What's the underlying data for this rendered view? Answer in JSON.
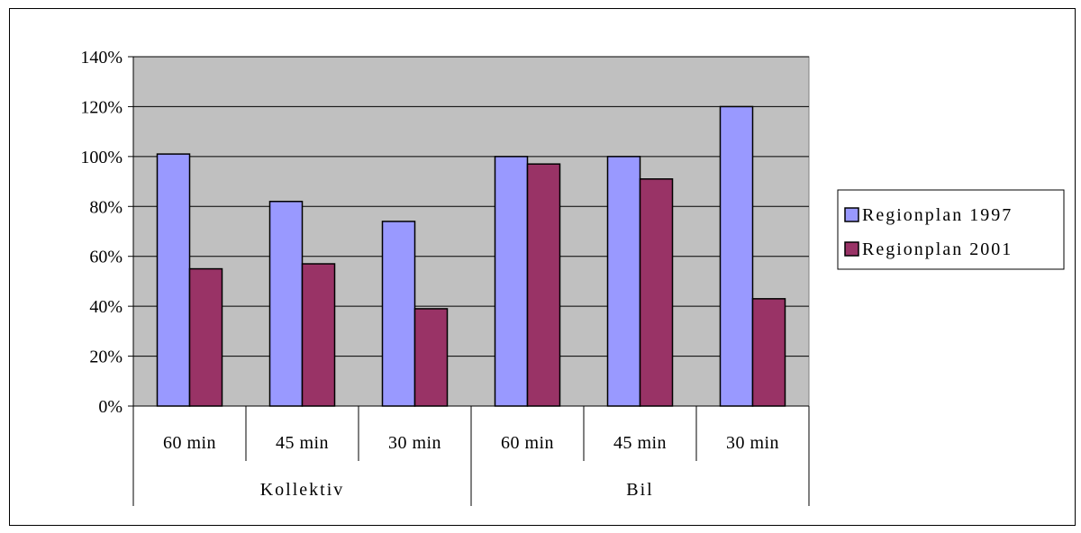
{
  "chart_data": {
    "type": "bar",
    "groups": [
      {
        "label": "Kollektiv",
        "categories": [
          "60 min",
          "45 min",
          "30 min"
        ]
      },
      {
        "label": "Bil",
        "categories": [
          "60 min",
          "45 min",
          "30 min"
        ]
      }
    ],
    "categories": [
      "60 min",
      "45 min",
      "30 min",
      "60 min",
      "45 min",
      "30 min"
    ],
    "series": [
      {
        "name": "Regionplan 1997",
        "values": [
          101,
          82,
          74,
          100,
          100,
          120
        ]
      },
      {
        "name": "Regionplan 2001",
        "values": [
          55,
          57,
          39,
          97,
          91,
          43
        ]
      }
    ],
    "ylim": [
      0,
      140
    ],
    "yticks": [
      0,
      20,
      40,
      60,
      80,
      100,
      120,
      140
    ],
    "ytick_labels": [
      "0%",
      "20%",
      "40%",
      "60%",
      "80%",
      "100%",
      "120%",
      "140%"
    ],
    "grid": true,
    "legend": "right",
    "colors": {
      "series": [
        "#9999ff",
        "#993366"
      ],
      "plot_background": "#c0c0c0"
    }
  }
}
